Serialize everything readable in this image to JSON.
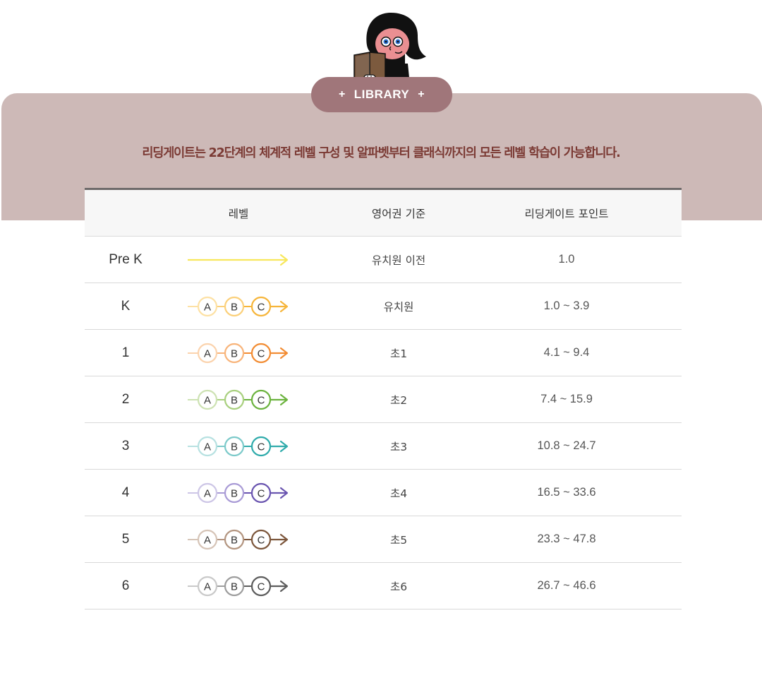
{
  "header": {
    "badge_label": "LIBRARY",
    "badge_plus": "+",
    "headline": "리딩게이트는 22단계의 체계적 레벨 구성 및 알파벳부터 클래식까지의 모든 레벨 학습이 가능합니다."
  },
  "table": {
    "columns": [
      "레벨",
      "영어권 기준",
      "리딩게이트 포인트"
    ],
    "rows": [
      {
        "level": "Pre K",
        "track": "arrow",
        "colors": [
          "#f7e75b",
          "#f7e75b",
          "#f7e75b"
        ],
        "standard": "유치원 이전",
        "points": "1.0"
      },
      {
        "level": "K",
        "track": "abc",
        "colors": [
          "#fde1a4",
          "#fbd07a",
          "#f6b53a"
        ],
        "standard": "유치원",
        "points": "1.0 ~ 3.9"
      },
      {
        "level": "1",
        "track": "abc",
        "colors": [
          "#fbd3ad",
          "#f8b47a",
          "#f28c33"
        ],
        "standard": "초1",
        "points": "4.1 ~ 9.4"
      },
      {
        "level": "2",
        "track": "abc",
        "colors": [
          "#cde2b3",
          "#a9d07f",
          "#6cb33f"
        ],
        "standard": "초2",
        "points": "7.4 ~ 15.9"
      },
      {
        "level": "3",
        "track": "abc",
        "colors": [
          "#b7e1e1",
          "#7ccaca",
          "#2fabab"
        ],
        "standard": "초3",
        "points": "10.8 ~ 24.7"
      },
      {
        "level": "4",
        "track": "abc",
        "colors": [
          "#cdc6e6",
          "#a99bd6",
          "#6a55b0"
        ],
        "standard": "초4",
        "points": "16.5 ~ 33.6"
      },
      {
        "level": "5",
        "track": "abc",
        "colors": [
          "#d6c4b7",
          "#b39580",
          "#7c563b"
        ],
        "standard": "초5",
        "points": "23.3 ~ 47.8"
      },
      {
        "level": "6",
        "track": "abc",
        "colors": [
          "#c9c9c9",
          "#9d9d9d",
          "#5c5c5c"
        ],
        "standard": "초6",
        "points": "26.7 ~ 46.6"
      }
    ],
    "track_letters": [
      "A",
      "B",
      "C"
    ]
  },
  "colors": {
    "band": "#cdb9b7",
    "badge": "#a0767a",
    "headline": "#7b3a34"
  },
  "icons": {
    "mascot": "girl-reading-book-icon"
  }
}
